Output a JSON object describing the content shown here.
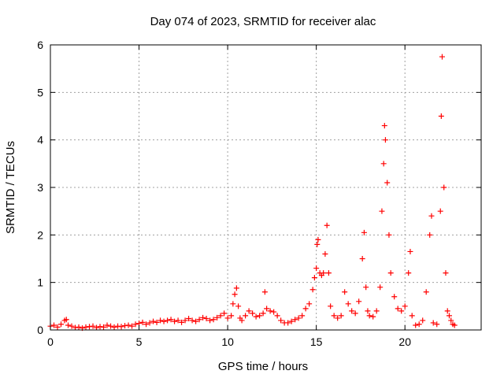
{
  "chart_data": {
    "type": "scatter",
    "title": "Day 074 of 2023, SRMTID for receiver alac",
    "xlabel": "GPS time / hours",
    "ylabel": "SRMTID / TECUs",
    "xlim": [
      0,
      24.3
    ],
    "ylim": [
      0,
      6
    ],
    "xticks": [
      0,
      5,
      10,
      15,
      20
    ],
    "yticks": [
      0,
      1,
      2,
      3,
      4,
      5,
      6
    ],
    "grid": true,
    "legend": "none",
    "marker": "plus",
    "color": "#ff0000",
    "series": [
      {
        "name": "SRMTID",
        "points": [
          [
            0.0,
            0.08
          ],
          [
            0.2,
            0.1
          ],
          [
            0.4,
            0.06
          ],
          [
            0.6,
            0.12
          ],
          [
            0.8,
            0.2
          ],
          [
            0.9,
            0.22
          ],
          [
            1.0,
            0.1
          ],
          [
            1.2,
            0.08
          ],
          [
            1.4,
            0.05
          ],
          [
            1.6,
            0.06
          ],
          [
            1.8,
            0.04
          ],
          [
            2.0,
            0.06
          ],
          [
            2.2,
            0.07
          ],
          [
            2.4,
            0.08
          ],
          [
            2.6,
            0.05
          ],
          [
            2.8,
            0.07
          ],
          [
            3.0,
            0.06
          ],
          [
            3.2,
            0.1
          ],
          [
            3.4,
            0.08
          ],
          [
            3.6,
            0.06
          ],
          [
            3.8,
            0.08
          ],
          [
            4.0,
            0.07
          ],
          [
            4.2,
            0.09
          ],
          [
            4.4,
            0.1
          ],
          [
            4.6,
            0.08
          ],
          [
            4.8,
            0.12
          ],
          [
            5.0,
            0.14
          ],
          [
            5.2,
            0.16
          ],
          [
            5.4,
            0.12
          ],
          [
            5.6,
            0.15
          ],
          [
            5.8,
            0.18
          ],
          [
            6.0,
            0.16
          ],
          [
            6.2,
            0.2
          ],
          [
            6.4,
            0.18
          ],
          [
            6.6,
            0.2
          ],
          [
            6.8,
            0.22
          ],
          [
            7.0,
            0.18
          ],
          [
            7.2,
            0.2
          ],
          [
            7.4,
            0.16
          ],
          [
            7.6,
            0.2
          ],
          [
            7.8,
            0.24
          ],
          [
            8.0,
            0.2
          ],
          [
            8.2,
            0.18
          ],
          [
            8.4,
            0.22
          ],
          [
            8.6,
            0.26
          ],
          [
            8.8,
            0.24
          ],
          [
            9.0,
            0.2
          ],
          [
            9.2,
            0.22
          ],
          [
            9.4,
            0.26
          ],
          [
            9.6,
            0.3
          ],
          [
            9.8,
            0.35
          ],
          [
            10.0,
            0.25
          ],
          [
            10.2,
            0.3
          ],
          [
            10.3,
            0.55
          ],
          [
            10.4,
            0.75
          ],
          [
            10.5,
            0.88
          ],
          [
            10.6,
            0.5
          ],
          [
            10.7,
            0.25
          ],
          [
            10.8,
            0.2
          ],
          [
            11.0,
            0.3
          ],
          [
            11.2,
            0.4
          ],
          [
            11.4,
            0.35
          ],
          [
            11.6,
            0.28
          ],
          [
            11.8,
            0.3
          ],
          [
            12.0,
            0.35
          ],
          [
            12.1,
            0.8
          ],
          [
            12.2,
            0.45
          ],
          [
            12.4,
            0.4
          ],
          [
            12.6,
            0.38
          ],
          [
            12.8,
            0.3
          ],
          [
            13.0,
            0.2
          ],
          [
            13.2,
            0.15
          ],
          [
            13.4,
            0.15
          ],
          [
            13.6,
            0.18
          ],
          [
            13.8,
            0.22
          ],
          [
            14.0,
            0.25
          ],
          [
            14.2,
            0.3
          ],
          [
            14.4,
            0.45
          ],
          [
            14.6,
            0.55
          ],
          [
            14.8,
            0.85
          ],
          [
            14.9,
            1.1
          ],
          [
            15.0,
            1.3
          ],
          [
            15.05,
            1.8
          ],
          [
            15.1,
            1.9
          ],
          [
            15.2,
            1.2
          ],
          [
            15.3,
            1.15
          ],
          [
            15.4,
            1.2
          ],
          [
            15.5,
            1.6
          ],
          [
            15.6,
            2.2
          ],
          [
            15.7,
            1.2
          ],
          [
            15.8,
            0.5
          ],
          [
            16.0,
            0.3
          ],
          [
            16.2,
            0.25
          ],
          [
            16.4,
            0.3
          ],
          [
            16.6,
            0.8
          ],
          [
            16.8,
            0.55
          ],
          [
            17.0,
            0.4
          ],
          [
            17.2,
            0.35
          ],
          [
            17.4,
            0.6
          ],
          [
            17.6,
            1.5
          ],
          [
            17.7,
            2.05
          ],
          [
            17.8,
            0.9
          ],
          [
            17.9,
            0.4
          ],
          [
            18.0,
            0.3
          ],
          [
            18.2,
            0.28
          ],
          [
            18.4,
            0.4
          ],
          [
            18.6,
            0.9
          ],
          [
            18.7,
            2.5
          ],
          [
            18.8,
            3.5
          ],
          [
            18.85,
            4.3
          ],
          [
            18.9,
            4.0
          ],
          [
            19.0,
            3.1
          ],
          [
            19.1,
            2.0
          ],
          [
            19.2,
            1.2
          ],
          [
            19.4,
            0.7
          ],
          [
            19.6,
            0.45
          ],
          [
            19.8,
            0.4
          ],
          [
            20.0,
            0.5
          ],
          [
            20.2,
            1.2
          ],
          [
            20.3,
            1.65
          ],
          [
            20.4,
            0.3
          ],
          [
            20.6,
            0.1
          ],
          [
            20.8,
            0.12
          ],
          [
            21.0,
            0.2
          ],
          [
            21.2,
            0.8
          ],
          [
            21.4,
            2.0
          ],
          [
            21.5,
            2.4
          ],
          [
            21.6,
            0.15
          ],
          [
            21.8,
            0.12
          ],
          [
            22.0,
            2.5
          ],
          [
            22.05,
            4.5
          ],
          [
            22.1,
            5.75
          ],
          [
            22.2,
            3.0
          ],
          [
            22.3,
            1.2
          ],
          [
            22.4,
            0.4
          ],
          [
            22.5,
            0.3
          ],
          [
            22.6,
            0.2
          ],
          [
            22.7,
            0.12
          ],
          [
            22.8,
            0.1
          ]
        ]
      }
    ]
  }
}
